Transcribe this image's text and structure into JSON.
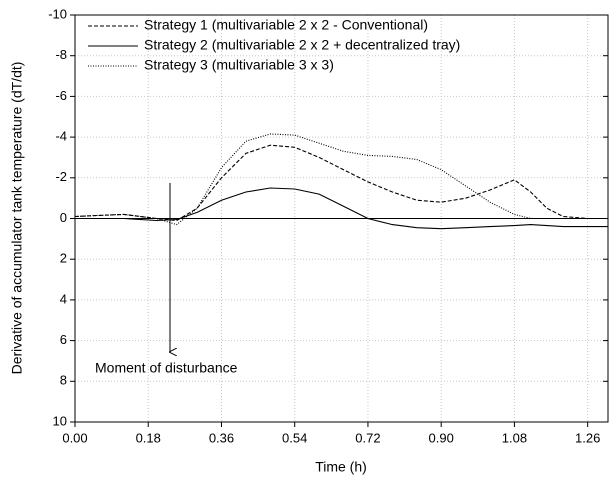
{
  "chart_data": {
    "type": "line",
    "xlabel": "Time (h)",
    "ylabel": "Derivative of accumulator tank temperature (dT/dt)",
    "x": [
      0,
      0.06,
      0.12,
      0.2,
      0.25,
      0.3,
      0.36,
      0.42,
      0.48,
      0.54,
      0.6,
      0.66,
      0.72,
      0.78,
      0.84,
      0.9,
      0.96,
      1.02,
      1.08,
      1.12,
      1.16,
      1.2,
      1.26,
      1.31
    ],
    "series": [
      {
        "name": "Strategy 1 (multivariable 2 x 2 - Conventional)",
        "color": "#000000",
        "dash": "dashed",
        "values": [
          -0.1,
          -0.15,
          -0.2,
          0,
          0.1,
          -0.5,
          -2,
          -3.2,
          -3.6,
          -3.5,
          -3,
          -2.4,
          -1.8,
          -1.3,
          -0.9,
          -0.8,
          -1.0,
          -1.4,
          -1.9,
          -1.3,
          -0.5,
          -0.1,
          0,
          0
        ]
      },
      {
        "name": "Strategy 2 (multivariable 2 x 2 + decentralized tray)",
        "color": "#000000",
        "dash": "solid",
        "values": [
          0,
          0,
          0,
          0.1,
          0.05,
          -0.3,
          -0.9,
          -1.3,
          -1.5,
          -1.45,
          -1.2,
          -0.6,
          0,
          0.3,
          0.45,
          0.5,
          0.45,
          0.4,
          0.35,
          0.3,
          0.35,
          0.4,
          0.4,
          0.4
        ]
      },
      {
        "name": "Strategy 3 (multivariable 3 x 3)",
        "color": "#000000",
        "dash": "dotted",
        "values": [
          -0.1,
          -0.15,
          -0.2,
          0,
          0.3,
          -0.5,
          -2.5,
          -3.8,
          -4.15,
          -4.1,
          -3.7,
          -3.3,
          -3.1,
          -3.05,
          -2.9,
          -2.4,
          -1.6,
          -0.8,
          -0.2,
          0,
          0,
          0,
          0,
          0
        ]
      }
    ],
    "reference_lines": [
      0
    ],
    "annotation": "Moment of disturbance",
    "xlim": [
      0,
      1.31
    ],
    "xticks": [
      {
        "value": 0,
        "label": "0.00"
      },
      {
        "value": 0.18,
        "label": "0.18"
      },
      {
        "value": 0.36,
        "label": "0.36"
      },
      {
        "value": 0.54,
        "label": "0.54"
      },
      {
        "value": 0.72,
        "label": "0.72"
      },
      {
        "value": 0.9,
        "label": "0.90"
      },
      {
        "value": 1.08,
        "label": "1.08"
      },
      {
        "value": 1.26,
        "label": "1.26"
      }
    ],
    "ylim": [
      -10,
      10
    ],
    "y_inverted": true,
    "yticks": [
      -10,
      -8,
      -6,
      -4,
      -2,
      0,
      2,
      4,
      6,
      8,
      10
    ],
    "grid": true,
    "legend": "upper left"
  }
}
